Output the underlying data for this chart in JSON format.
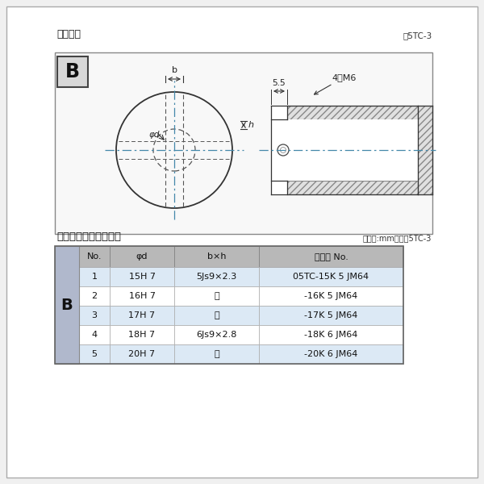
{
  "bg_color": "#f0f0f0",
  "inner_bg": "#ffffff",
  "title_diagram": "軸穴形状",
  "fig_label": "囵5TC-3",
  "table_title": "軸穴形状コード一覧表",
  "table_unit": "（単位:mm）　表5TC-3",
  "B_label": "B",
  "dim_55": "5.5",
  "dim_4M6": "4－M6",
  "dim_b": "b",
  "dim_h": "h",
  "dim_phid": "φd",
  "header": [
    "No.",
    "φd",
    "b×h",
    "コード No."
  ],
  "rows": [
    [
      "1",
      "15H 7",
      "5Js9×2.3",
      "05TC-15K 5 JM64"
    ],
    [
      "2",
      "16H 7",
      "〃",
      "-16K 5 JM64"
    ],
    [
      "3",
      "17H 7",
      "〃",
      "-17K 5 JM64"
    ],
    [
      "4",
      "18H 7",
      "6Js9×2.8",
      "-18K 6 JM64"
    ],
    [
      "5",
      "20H 7",
      "〃",
      "-20K 6 JM64"
    ]
  ],
  "row_colors": [
    "#dce9f5",
    "#ffffff",
    "#dce9f5",
    "#ffffff",
    "#dce9f5"
  ],
  "header_color": "#b8b8b8",
  "B_col_color": "#b0b8cc"
}
